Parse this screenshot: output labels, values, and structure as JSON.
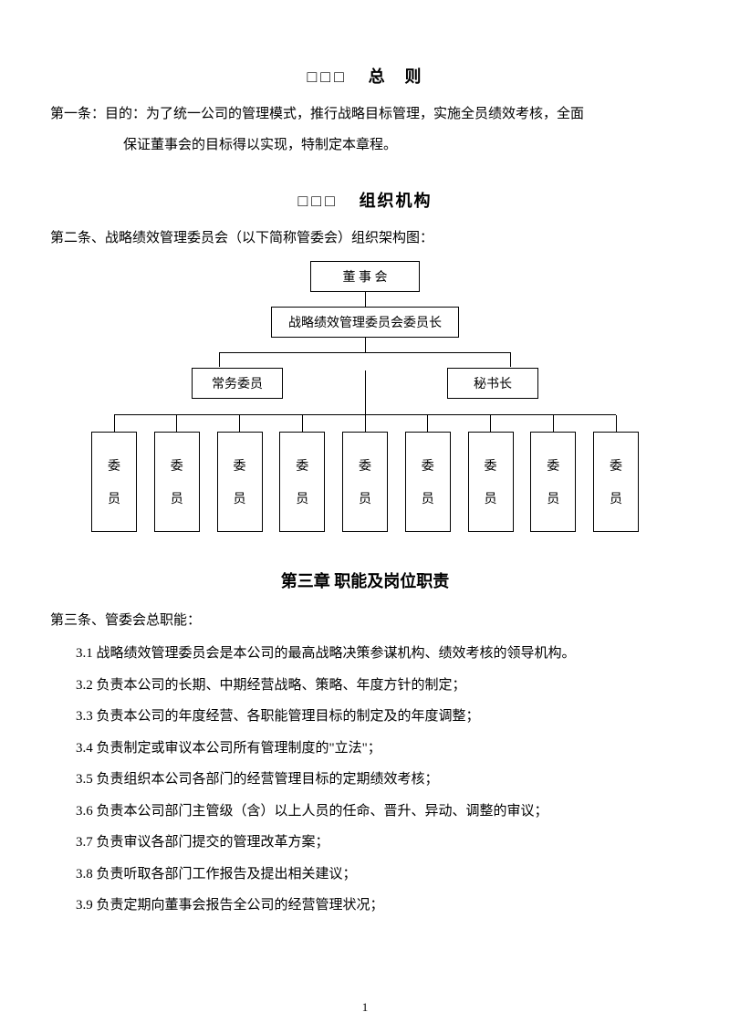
{
  "chapter1": {
    "placeholder": "□□□",
    "title": "总　则"
  },
  "article1": {
    "label": "第一条：目的：",
    "text1": "为了统一公司的管理模式，推行战略目标管理，实施全员绩效考核，全面",
    "text2": "保证董事会的目标得以实现，特制定本章程。"
  },
  "chapter2": {
    "placeholder": "□□□",
    "title": "组织机构"
  },
  "article2": {
    "text": "第二条、战略绩效管理委员会（以下简称管委会）组织架构图："
  },
  "org": {
    "l1": "董 事 会",
    "l2": "战略绩效管理委员会委员长",
    "l3a": "常务委员",
    "l3b": "秘书长",
    "member_c1": "委",
    "member_c2": "员"
  },
  "chapter3": {
    "title": "第三章  职能及岗位职责"
  },
  "article3": {
    "text": "第三条、管委会总职能："
  },
  "items": {
    "i1": "3.1 战略绩效管理委员会是本公司的最高战略决策参谋机构、绩效考核的领导机构。",
    "i2": "3.2 负责本公司的长期、中期经营战略、策略、年度方针的制定；",
    "i3": "3.3 负责本公司的年度经营、各职能管理目标的制定及的年度调整；",
    "i4": "3.4 负责制定或审议本公司所有管理制度的\"立法\"；",
    "i5": "3.5 负责组织本公司各部门的经营管理目标的定期绩效考核；",
    "i6": "3.6 负责本公司部门主管级（含）以上人员的任命、晋升、异动、调整的审议；",
    "i7": "3.7 负责审议各部门提交的管理改革方案；",
    "i8": "3.8 负责听取各部门工作报告及提出相关建议；",
    "i9": "3.9 负责定期向董事会报告全公司的经营管理状况；"
  },
  "page_number": "1",
  "styling": {
    "page_bg": "#ffffff",
    "text_color": "#000000",
    "border_color": "#000000",
    "body_fontsize": 15,
    "title_fontsize": 18,
    "member_count": 9
  }
}
